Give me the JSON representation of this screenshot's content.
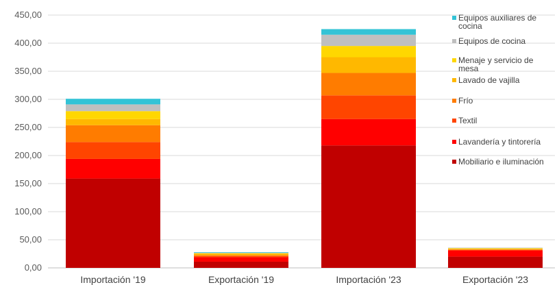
{
  "chart_data": {
    "type": "bar",
    "stacked": true,
    "categories": [
      "Importación '19",
      "Exportación '19",
      "Importación '23",
      "Exportación '23"
    ],
    "ylim": [
      0,
      450
    ],
    "yticks": [
      "0,00",
      "50,00",
      "100,00",
      "150,00",
      "200,00",
      "250,00",
      "300,00",
      "350,00",
      "400,00",
      "450,00"
    ],
    "grid": true,
    "legend_position": "right",
    "series": [
      {
        "name": "Mobiliario e iluminación",
        "color": "#C00000",
        "values": [
          159,
          11,
          218,
          20
        ]
      },
      {
        "name": "Lavandería y tintorería",
        "color": "#FF0000",
        "values": [
          35,
          8,
          47,
          11
        ]
      },
      {
        "name": "Textil",
        "color": "#FF4500",
        "values": [
          30,
          2,
          42,
          1
        ]
      },
      {
        "name": "Frío",
        "color": "#FF7C00",
        "values": [
          30,
          2,
          40,
          1
        ]
      },
      {
        "name": "Lavado de vajilla",
        "color": "#FFB800",
        "values": [
          11,
          2,
          28,
          1
        ]
      },
      {
        "name": "Menaje y servicio de mesa",
        "color": "#FFD700",
        "values": [
          14,
          1,
          20,
          1
        ]
      },
      {
        "name": "Equipos de cocina",
        "color": "#BFBFBF",
        "values": [
          12,
          1,
          20,
          1
        ]
      },
      {
        "name": "Equipos auxiliares de cocina",
        "color": "#33C3D6",
        "values": [
          10,
          1,
          10,
          0
        ]
      }
    ]
  }
}
